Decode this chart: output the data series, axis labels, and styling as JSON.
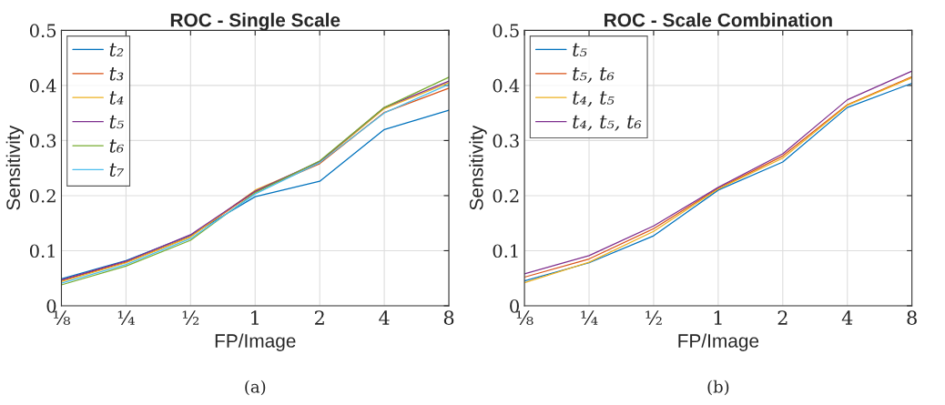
{
  "chart_data": [
    {
      "type": "line",
      "title": "ROC - Single Scale",
      "xlabel": "FP/Image",
      "ylabel": "Sensitivity",
      "annotations": [
        "(a)"
      ],
      "x": [
        0.125,
        0.25,
        0.5,
        1,
        2,
        4,
        8
      ],
      "log": "x",
      "xlim": [
        0.125,
        8
      ],
      "xticks": [
        {
          "value": 0.125,
          "label": "⅛"
        },
        {
          "value": 0.25,
          "label": "¼"
        },
        {
          "value": 0.5,
          "label": "½"
        },
        1,
        2,
        4,
        8
      ],
      "ylim": [
        0,
        0.5
      ],
      "yticks": [
        0,
        0.1,
        0.2,
        0.3,
        0.4,
        0.5
      ],
      "grid": true,
      "legend": "top left",
      "series": [
        {
          "name": "t₂",
          "color": "#0072bd",
          "values": [
            0.049,
            0.082,
            0.128,
            0.198,
            0.226,
            0.32,
            0.355
          ]
        },
        {
          "name": "t₃",
          "color": "#d95319",
          "values": [
            0.046,
            0.079,
            0.126,
            0.207,
            0.258,
            0.351,
            0.395
          ]
        },
        {
          "name": "t₄",
          "color": "#edb120",
          "values": [
            0.044,
            0.078,
            0.125,
            0.21,
            0.26,
            0.358,
            0.405
          ]
        },
        {
          "name": "t₅",
          "color": "#7e2f8e",
          "values": [
            0.047,
            0.081,
            0.129,
            0.208,
            0.262,
            0.36,
            0.408
          ]
        },
        {
          "name": "t₆",
          "color": "#77ac30",
          "values": [
            0.038,
            0.072,
            0.119,
            0.205,
            0.263,
            0.36,
            0.415
          ]
        },
        {
          "name": "t₇",
          "color": "#4dbeee",
          "values": [
            0.041,
            0.075,
            0.122,
            0.203,
            0.26,
            0.35,
            0.402
          ]
        }
      ]
    },
    {
      "type": "line",
      "title": "ROC - Scale Combination",
      "xlabel": "FP/Image",
      "ylabel": "Sensitivity",
      "annotations": [
        "(b)"
      ],
      "x": [
        0.125,
        0.25,
        0.5,
        1,
        2,
        4,
        8
      ],
      "log": "x",
      "xlim": [
        0.125,
        8
      ],
      "xticks": [
        {
          "value": 0.125,
          "label": "⅛"
        },
        {
          "value": 0.25,
          "label": "¼"
        },
        {
          "value": 0.5,
          "label": "½"
        },
        1,
        2,
        4,
        8
      ],
      "ylim": [
        0,
        0.5
      ],
      "yticks": [
        0,
        0.1,
        0.2,
        0.3,
        0.4,
        0.5
      ],
      "grid": true,
      "legend": "top left",
      "series": [
        {
          "name": "t₅",
          "color": "#0072bd",
          "values": [
            0.045,
            0.078,
            0.127,
            0.21,
            0.261,
            0.36,
            0.404
          ]
        },
        {
          "name": "t₅, t₆",
          "color": "#d95319",
          "values": [
            0.052,
            0.085,
            0.14,
            0.213,
            0.272,
            0.365,
            0.416
          ]
        },
        {
          "name": "t₄, t₅",
          "color": "#edb120",
          "values": [
            0.042,
            0.079,
            0.135,
            0.212,
            0.268,
            0.364,
            0.414
          ]
        },
        {
          "name": "t₄, t₅, t₆",
          "color": "#7e2f8e",
          "values": [
            0.058,
            0.091,
            0.145,
            0.215,
            0.276,
            0.374,
            0.426
          ]
        }
      ]
    }
  ]
}
